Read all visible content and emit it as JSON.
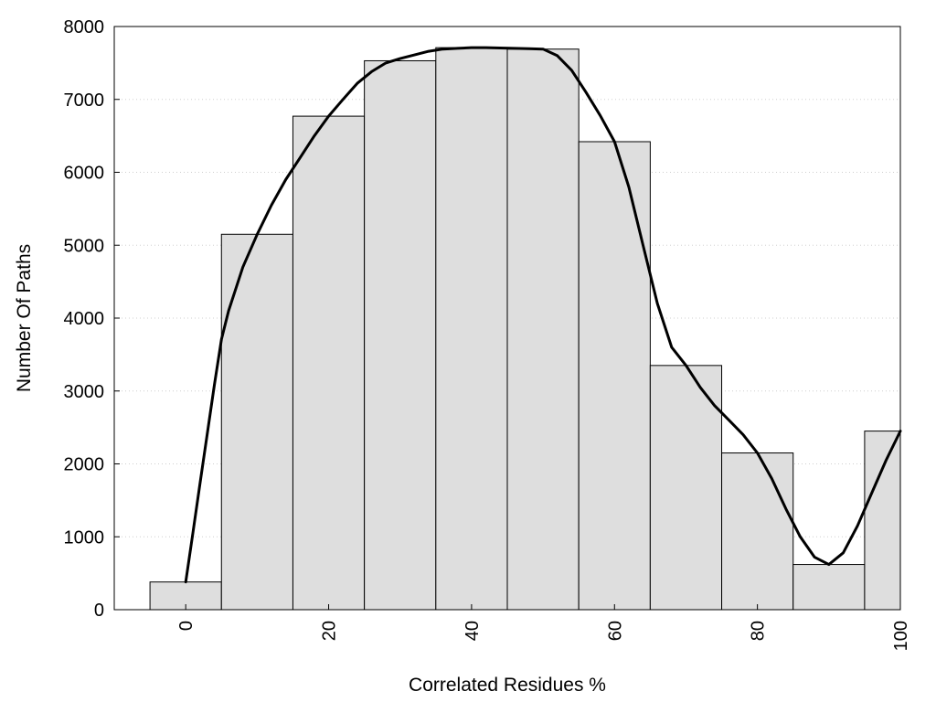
{
  "chart_data": {
    "type": "bar",
    "xlabel": "Correlated Residues %",
    "ylabel": "Number Of Paths",
    "xlim": [
      -10,
      100
    ],
    "ylim": [
      0,
      8000
    ],
    "bin_width": 10,
    "x_ticks": [
      0,
      20,
      40,
      60,
      80,
      100
    ],
    "y_ticks": [
      0,
      1000,
      2000,
      3000,
      4000,
      5000,
      6000,
      7000,
      8000
    ],
    "grid": "horizontal-dotted",
    "bar_color": "#dedede",
    "line_color": "#000000",
    "bars": [
      {
        "x": 0,
        "value": 380
      },
      {
        "x": 10,
        "value": 5150
      },
      {
        "x": 20,
        "value": 6770
      },
      {
        "x": 30,
        "value": 7530
      },
      {
        "x": 40,
        "value": 7710
      },
      {
        "x": 50,
        "value": 7690
      },
      {
        "x": 60,
        "value": 6420
      },
      {
        "x": 70,
        "value": 3350
      },
      {
        "x": 80,
        "value": 2150
      },
      {
        "x": 90,
        "value": 620
      },
      {
        "x": 100,
        "value": 2450
      }
    ],
    "curve": {
      "x": [
        0,
        1,
        2,
        3,
        4,
        5,
        6,
        8,
        10,
        12,
        14,
        16,
        18,
        20,
        22,
        24,
        26,
        28,
        30,
        32,
        34,
        36,
        38,
        40,
        42,
        44,
        46,
        48,
        50,
        52,
        54,
        56,
        58,
        60,
        62,
        64,
        66,
        68,
        70,
        72,
        74,
        76,
        78,
        80,
        82,
        84,
        86,
        88,
        90,
        92,
        94,
        96,
        98,
        100
      ],
      "y": [
        380,
        1050,
        1730,
        2400,
        3080,
        3710,
        4100,
        4700,
        5150,
        5550,
        5900,
        6200,
        6500,
        6770,
        7000,
        7220,
        7380,
        7500,
        7560,
        7610,
        7660,
        7690,
        7700,
        7710,
        7710,
        7705,
        7700,
        7695,
        7690,
        7600,
        7400,
        7100,
        6780,
        6420,
        5800,
        5000,
        4200,
        3600,
        3350,
        3050,
        2800,
        2600,
        2400,
        2150,
        1800,
        1380,
        1000,
        720,
        620,
        780,
        1150,
        1600,
        2050,
        2450
      ]
    }
  }
}
